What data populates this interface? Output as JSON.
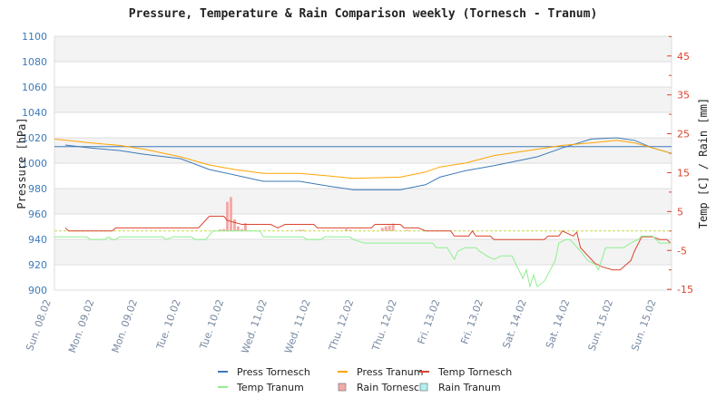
{
  "chart_data": {
    "type": "line",
    "title": "Pressure, Temperature & Rain Comparison weekly (Tornesch - Tranum)",
    "ylabel_left": "Pressure [hPa]",
    "ylabel_right": "Temp [C] / Rain [mm]",
    "ylim_left": [
      900,
      1100
    ],
    "yticks_left": [
      1100,
      1080,
      1060,
      1040,
      1020,
      1000,
      980,
      960,
      940,
      920,
      900
    ],
    "ylim_right": [
      -15,
      50
    ],
    "yticks_right": [
      45,
      35,
      25,
      15,
      5,
      -5,
      -15
    ],
    "grid": true,
    "reference_pressure": 1013,
    "x_ticks": [
      "Sun. 08.02",
      "Mon. 09.02",
      "Mon. 09.02",
      "Tue. 10.02",
      "Tue. 10.02",
      "Wed. 11.02",
      "Wed. 11.02",
      "Thu. 12.02",
      "Thu. 12.02",
      "Fri. 13.02",
      "Fri. 13.02",
      "Sat. 14.02",
      "Sat. 14.02",
      "Sun. 15.02",
      "Sun. 15.02"
    ],
    "legend_position": "bottom",
    "colors": {
      "press_tornesch": "#3d7ab8",
      "press_tranum": "#ffa500",
      "temp_tornesch": "#d9452e",
      "temp_tranum": "#90ee90",
      "rain_tornesch": "#f4a9a8",
      "rain_tranum": "#aff0f0",
      "zero_line": "#c8d84a"
    },
    "series": [
      {
        "name": "Press Tornesch",
        "kind": "line",
        "axis": "left",
        "color_key": "press_tornesch",
        "points": [
          [
            "08.02 16:00",
            1014.3
          ],
          [
            "08.02 23:00",
            1012
          ],
          [
            "09.02 07:00",
            1010
          ],
          [
            "09.02 14:00",
            1007
          ],
          [
            "10.02 00:00",
            1003.6
          ],
          [
            "10.02 08:00",
            995
          ],
          [
            "10.02 15:00",
            990.7
          ],
          [
            "10.02 23:00",
            985.7
          ],
          [
            "11.02 09:00",
            985.7
          ],
          [
            "11.02 17:00",
            982
          ],
          [
            "12.02 00:00",
            979
          ],
          [
            "12.02 13:00",
            979
          ],
          [
            "12.02 20:00",
            983
          ],
          [
            "13.02 00:00",
            989
          ],
          [
            "13.02 07:00",
            994
          ],
          [
            "13.02 15:00",
            998
          ],
          [
            "14.02 03:00",
            1005
          ],
          [
            "14.02 10:00",
            1012
          ],
          [
            "14.02 18:00",
            1019
          ],
          [
            "15.02 01:00",
            1020
          ],
          [
            "15.02 06:00",
            1018
          ],
          [
            "15.02 11:00",
            1012
          ],
          [
            "15.02 16:00",
            1008
          ]
        ]
      },
      {
        "name": "Press Tranum",
        "kind": "line",
        "axis": "left",
        "color_key": "press_tranum",
        "points": [
          [
            "08.02 13:00",
            1019
          ],
          [
            "08.02 23:00",
            1016
          ],
          [
            "09.02 07:00",
            1014
          ],
          [
            "09.02 14:00",
            1011
          ],
          [
            "10.02 00:00",
            1005
          ],
          [
            "10.02 08:00",
            998.6
          ],
          [
            "10.02 15:00",
            995
          ],
          [
            "10.02 23:00",
            992
          ],
          [
            "11.02 09:00",
            992
          ],
          [
            "11.02 17:00",
            990
          ],
          [
            "12.02 00:00",
            988
          ],
          [
            "12.02 13:00",
            989
          ],
          [
            "12.02 20:00",
            993
          ],
          [
            "13.02 00:00",
            997
          ],
          [
            "13.02 07:00",
            1000
          ],
          [
            "13.02 15:00",
            1006
          ],
          [
            "14.02 03:00",
            1011
          ],
          [
            "14.02 10:00",
            1014
          ],
          [
            "14.02 18:00",
            1016
          ],
          [
            "15.02 01:00",
            1018
          ],
          [
            "15.02 06:00",
            1016
          ],
          [
            "15.02 11:00",
            1012
          ],
          [
            "15.02 16:00",
            1008
          ]
        ]
      },
      {
        "name": "Temp Tornesch",
        "kind": "line",
        "axis": "right",
        "color_key": "temp_tornesch",
        "points": [
          [
            "08.02 16:00",
            0.8
          ],
          [
            "08.02 17:00",
            0
          ],
          [
            "09.02 05:00",
            0
          ],
          [
            "09.02 06:00",
            0.8
          ],
          [
            "10.02 05:00",
            0.8
          ],
          [
            "10.02 08:00",
            3.8
          ],
          [
            "10.02 12:00",
            3.8
          ],
          [
            "10.02 13:00",
            2.7
          ],
          [
            "10.02 17:00",
            1.7
          ],
          [
            "11.02 01:00",
            1.7
          ],
          [
            "11.02 03:00",
            0.8
          ],
          [
            "11.02 05:00",
            1.7
          ],
          [
            "11.02 13:00",
            1.7
          ],
          [
            "11.02 14:00",
            0.8
          ],
          [
            "12.02 05:00",
            0.8
          ],
          [
            "12.02 06:00",
            1.7
          ],
          [
            "12.02 13:00",
            1.7
          ],
          [
            "12.02 14:00",
            0.8
          ],
          [
            "12.02 18:00",
            0.8
          ],
          [
            "12.02 20:00",
            0
          ],
          [
            "13.02 03:00",
            0
          ],
          [
            "13.02 04:00",
            -1.3
          ],
          [
            "13.02 08:00",
            -1.3
          ],
          [
            "13.02 09:00",
            0
          ],
          [
            "13.02 10:00",
            -1.3
          ],
          [
            "13.02 14:00",
            -1.3
          ],
          [
            "13.02 15:00",
            -2.2
          ],
          [
            "14.02 05:00",
            -2.2
          ],
          [
            "14.02 06:00",
            -1.3
          ],
          [
            "14.02 09:00",
            -1.3
          ],
          [
            "14.02 10:00",
            0
          ],
          [
            "14.02 13:00",
            -1.3
          ],
          [
            "14.02 14:00",
            -0.3
          ],
          [
            "14.02 15:00",
            -4.3
          ],
          [
            "14.02 19:00",
            -8.3
          ],
          [
            "14.02 21:00",
            -9.2
          ],
          [
            "15.02 00:00",
            -10
          ],
          [
            "15.02 02:00",
            -10
          ],
          [
            "15.02 05:00",
            -7.6
          ],
          [
            "15.02 06:00",
            -5.2
          ],
          [
            "15.02 08:00",
            -1.5
          ],
          [
            "15.02 11:00",
            -1.5
          ],
          [
            "15.02 13:00",
            -2.2
          ],
          [
            "15.02 15:00",
            -2.2
          ],
          [
            "15.02 16:00",
            -3.1
          ]
        ]
      },
      {
        "name": "Temp Tranum",
        "kind": "line",
        "axis": "right",
        "color_key": "temp_tranum",
        "points": [
          [
            "08.02 13:00",
            -1.5
          ],
          [
            "08.02 22:00",
            -1.5
          ],
          [
            "08.02 23:00",
            -2.2
          ],
          [
            "09.02 03:00",
            -2.2
          ],
          [
            "09.02 04:00",
            -1.5
          ],
          [
            "09.02 05:00",
            -2.2
          ],
          [
            "09.02 06:00",
            -2.2
          ],
          [
            "09.02 07:00",
            -1.5
          ],
          [
            "09.02 19:00",
            -1.5
          ],
          [
            "09.02 20:00",
            -2.2
          ],
          [
            "09.02 22:00",
            -1.5
          ],
          [
            "10.02 03:00",
            -1.5
          ],
          [
            "10.02 04:00",
            -2.2
          ],
          [
            "10.02 07:00",
            -2.2
          ],
          [
            "10.02 09:00",
            0
          ],
          [
            "10.02 22:00",
            0
          ],
          [
            "10.02 23:00",
            -1.5
          ],
          [
            "11.02 10:00",
            -1.5
          ],
          [
            "11.02 11:00",
            -2.2
          ],
          [
            "11.02 15:00",
            -2.2
          ],
          [
            "11.02 16:00",
            -1.5
          ],
          [
            "11.02 23:00",
            -1.5
          ],
          [
            "12.02 00:00",
            -2.2
          ],
          [
            "12.02 03:00",
            -3.1
          ],
          [
            "12.02 22:00",
            -3.1
          ],
          [
            "12.02 23:00",
            -4.3
          ],
          [
            "13.02 02:00",
            -4.3
          ],
          [
            "13.02 04:00",
            -7.3
          ],
          [
            "13.02 05:00",
            -5.2
          ],
          [
            "13.02 07:00",
            -4.3
          ],
          [
            "13.02 10:00",
            -4.3
          ],
          [
            "13.02 11:00",
            -5.2
          ],
          [
            "13.02 13:00",
            -6.4
          ],
          [
            "13.02 15:00",
            -7.3
          ],
          [
            "13.02 17:00",
            -6.4
          ],
          [
            "13.02 20:00",
            -6.4
          ],
          [
            "13.02 23:00",
            -12.2
          ],
          [
            "14.02 00:00",
            -10
          ],
          [
            "14.02 01:00",
            -14.3
          ],
          [
            "14.02 02:00",
            -11.3
          ],
          [
            "14.02 03:00",
            -14.3
          ],
          [
            "14.02 05:00",
            -12.9
          ],
          [
            "14.02 08:00",
            -7.6
          ],
          [
            "14.02 09:00",
            -3.1
          ],
          [
            "14.02 11:00",
            -2.2
          ],
          [
            "14.02 12:00",
            -2.2
          ],
          [
            "14.02 13:00",
            -3.1
          ],
          [
            "14.02 15:00",
            -5.2
          ],
          [
            "14.02 17:00",
            -7.6
          ],
          [
            "14.02 19:00",
            -8.5
          ],
          [
            "14.02 20:00",
            -10
          ],
          [
            "14.02 22:00",
            -4.3
          ],
          [
            "15.02 03:00",
            -4.3
          ],
          [
            "15.02 05:00",
            -3.1
          ],
          [
            "15.02 07:00",
            -2.2
          ],
          [
            "15.02 08:00",
            -1.3
          ],
          [
            "15.02 11:00",
            -1.3
          ],
          [
            "15.02 13:00",
            -3.1
          ],
          [
            "15.02 16:00",
            -3.1
          ]
        ]
      },
      {
        "name": "Rain Tornesch",
        "kind": "bar",
        "axis": "right",
        "color_key": "rain_tornesch",
        "points": [
          [
            "10.02 11:00",
            0.4
          ],
          [
            "10.02 12:00",
            0.5
          ],
          [
            "10.02 13:00",
            7.5
          ],
          [
            "10.02 14:00",
            8.7
          ],
          [
            "10.02 15:00",
            3
          ],
          [
            "10.02 16:00",
            1.2
          ],
          [
            "10.02 17:00",
            0.5
          ],
          [
            "10.02 18:00",
            2
          ],
          [
            "11.02 09:00",
            0.3
          ],
          [
            "11.02 10:00",
            0.3
          ],
          [
            "11.02 22:00",
            0.5
          ],
          [
            "11.02 23:00",
            0.3
          ],
          [
            "12.02 08:00",
            0.8
          ],
          [
            "12.02 09:00",
            1.2
          ],
          [
            "12.02 10:00",
            1.4
          ],
          [
            "12.02 11:00",
            1.9
          ],
          [
            "12.02 15:00",
            0.3
          ]
        ]
      },
      {
        "name": "Rain Tranum",
        "kind": "bar",
        "axis": "right",
        "color_key": "rain_tranum",
        "points": []
      }
    ]
  }
}
